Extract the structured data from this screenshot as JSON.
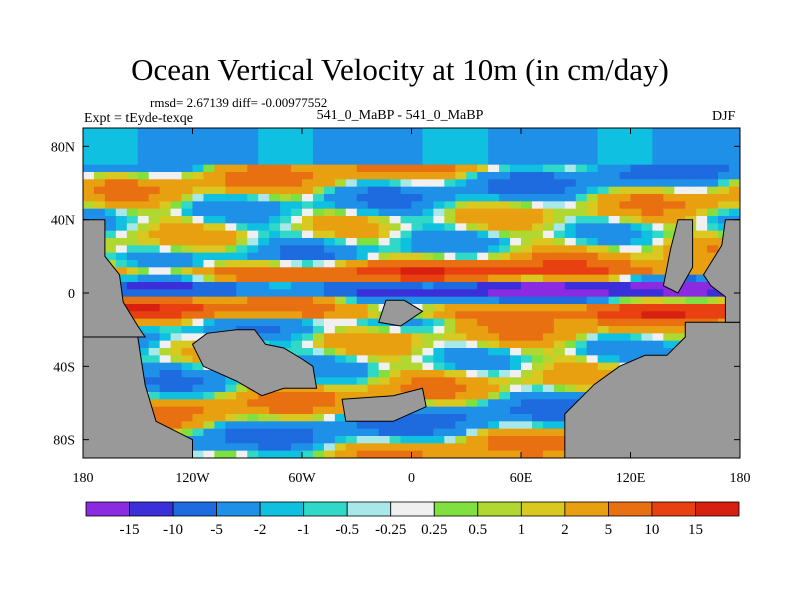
{
  "chart_data": {
    "type": "heatmap",
    "title": "Ocean Vertical Velocity at 10m (in cm/day)",
    "stats_line": "rmsd= 2.67139 diff= -0.00977552",
    "experiment_label": "Expt = tEyde-texqe",
    "comparison_label": "541_0_MaBP - 541_0_MaBP",
    "season": "DJF",
    "units": "cm/day",
    "depth": "10m",
    "x_range": [
      -180,
      180
    ],
    "y_range": [
      -90,
      90
    ],
    "x_ticks": [
      {
        "value": -180,
        "label": "180"
      },
      {
        "value": -120,
        "label": "120W"
      },
      {
        "value": -60,
        "label": "60W"
      },
      {
        "value": 0,
        "label": "0"
      },
      {
        "value": 60,
        "label": "60E"
      },
      {
        "value": 120,
        "label": "120E"
      },
      {
        "value": 180,
        "label": "180"
      }
    ],
    "y_ticks": [
      {
        "value": 80,
        "label": "80N"
      },
      {
        "value": 40,
        "label": "40N"
      },
      {
        "value": 0,
        "label": "0"
      },
      {
        "value": -40,
        "label": "40S"
      },
      {
        "value": -80,
        "label": "80S"
      }
    ],
    "levels": [
      "-15",
      "-10",
      "-5",
      "-2",
      "-1",
      "-0.5",
      "-0.25",
      "0.25",
      "0.5",
      "1",
      "2",
      "5",
      "10",
      "15"
    ],
    "colors": [
      "#8a2be2",
      "#3a2fd9",
      "#1e6be0",
      "#1e90e8",
      "#10c0e0",
      "#30d8c8",
      "#a8e8e8",
      "#f0f0f0",
      "#80e040",
      "#b0d830",
      "#d8c820",
      "#e8a010",
      "#e87010",
      "#e84010",
      "#d82010"
    ],
    "land_color": "#999999"
  }
}
